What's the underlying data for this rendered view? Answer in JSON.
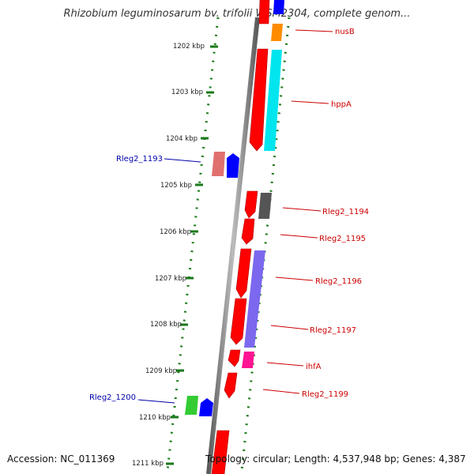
{
  "title": "Rhizobium leguminosarum bv. trifolii WSM2304, complete genom...",
  "footer": {
    "accession": "Accession: NC_011369",
    "summary": "Topology: circular; Length: 4,537,948 bp; Genes: 4,387"
  },
  "scale_labels": [
    "1202 kbp",
    "1203 kbp",
    "1204 kbp",
    "1205 kbp",
    "1206 kbp",
    "1207 kbp",
    "1208 kbp",
    "1209 kbp",
    "1210 kbp",
    "1211 kbp"
  ],
  "gene_labels_right": [
    "nusB",
    "hppA",
    "Rleg2_1194",
    "Rleg2_1195",
    "Rleg2_1196",
    "Rleg2_1197",
    "ihfA",
    "Rleg2_1199"
  ],
  "gene_labels_left": [
    "Rleg2_1193",
    "Rleg2_1200"
  ],
  "colors": {
    "backbone": "#8a8a8a",
    "ruler": "#1a7a1a",
    "gene": "#ff0000",
    "label_right": "#cc0000",
    "label_left": "#0000aa",
    "hppA_feature": "#00e5ee",
    "gene_1196_feature": "#7b68ee",
    "gene_1194_feature": "#555555",
    "gene_1193_feature": "#e07070",
    "gene_1200_feature": "#33cc33",
    "nusB_feature": "#ff8c00",
    "ihfA_feature": "#ff1493",
    "blue_gene": "#0000ff"
  }
}
